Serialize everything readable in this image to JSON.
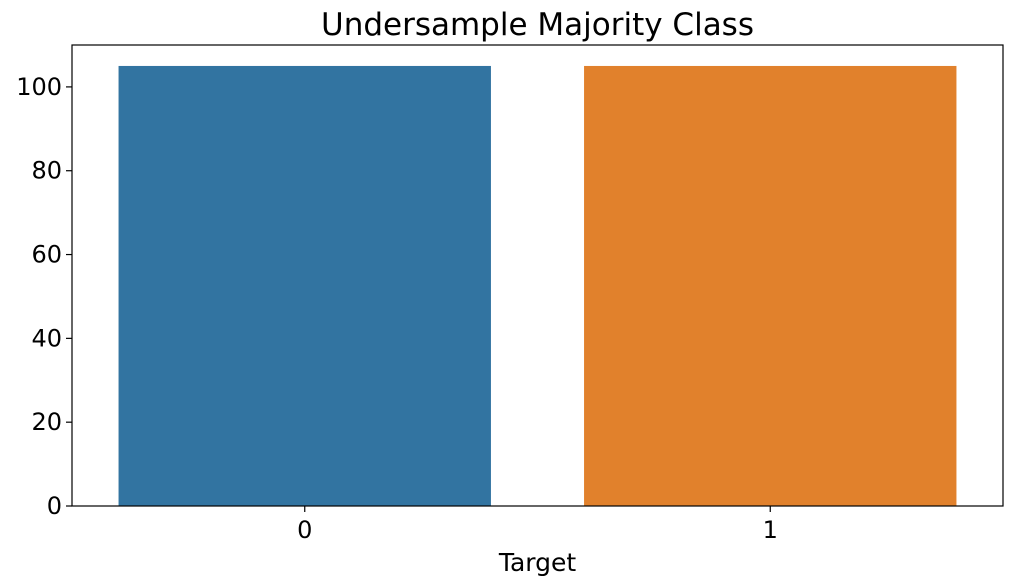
{
  "chart_data": {
    "type": "bar",
    "title": "Undersample Majority Class",
    "xlabel": "Target",
    "ylabel": "",
    "categories": [
      "0",
      "1"
    ],
    "values": [
      105,
      105
    ],
    "colors": [
      "#3274a1",
      "#e1812c"
    ],
    "ylim": [
      0,
      110
    ],
    "yticks": [
      0,
      20,
      40,
      60,
      80,
      100
    ],
    "grid": false,
    "legend": "none"
  }
}
